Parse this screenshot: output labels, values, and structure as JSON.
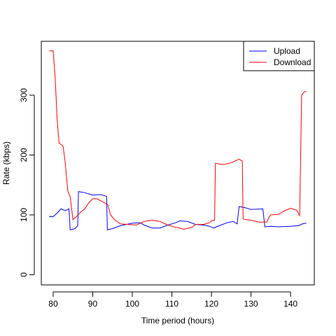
{
  "chart_data": {
    "type": "line",
    "title": "",
    "xlabel": "Time period (hours)",
    "ylabel": "Rate (kbps)",
    "xlim": [
      77,
      146
    ],
    "ylim": [
      -17,
      390
    ],
    "x_ticks": [
      80,
      90,
      100,
      110,
      120,
      130,
      140
    ],
    "y_ticks": [
      0,
      100,
      200,
      300
    ],
    "grid": false,
    "legend": {
      "position": "top-right",
      "entries": [
        {
          "label": "Upload",
          "color": "#0000ff"
        },
        {
          "label": "Download",
          "color": "#ff0000"
        }
      ]
    },
    "series": [
      {
        "name": "Upload",
        "color": "#0000ff",
        "points": [
          [
            79.0,
            97
          ],
          [
            80.0,
            97
          ],
          [
            81.0,
            103
          ],
          [
            82.0,
            110
          ],
          [
            83.0,
            107
          ],
          [
            84.0,
            110
          ],
          [
            84.3,
            75
          ],
          [
            85.5,
            77
          ],
          [
            86.2,
            82
          ],
          [
            86.4,
            139
          ],
          [
            88.0,
            137
          ],
          [
            90.0,
            133
          ],
          [
            92.0,
            134
          ],
          [
            93.5,
            131
          ],
          [
            93.7,
            75
          ],
          [
            95.0,
            77
          ],
          [
            97.0,
            82
          ],
          [
            100.0,
            86
          ],
          [
            102.0,
            87
          ],
          [
            103.0,
            83
          ],
          [
            105.0,
            78
          ],
          [
            107.0,
            78
          ],
          [
            109.0,
            83
          ],
          [
            111.0,
            87
          ],
          [
            112.0,
            90
          ],
          [
            114.0,
            89
          ],
          [
            116.0,
            84
          ],
          [
            118.0,
            83
          ],
          [
            119.5,
            81
          ],
          [
            120.5,
            78
          ],
          [
            122.0,
            82
          ],
          [
            124.0,
            87
          ],
          [
            125.5,
            89
          ],
          [
            126.5,
            85
          ],
          [
            127.0,
            114
          ],
          [
            128.5,
            112
          ],
          [
            130.0,
            109
          ],
          [
            133.0,
            110
          ],
          [
            133.5,
            80
          ],
          [
            135.0,
            81
          ],
          [
            137.0,
            80
          ],
          [
            140.0,
            81
          ],
          [
            142.0,
            82
          ],
          [
            143.0,
            85
          ],
          [
            144.0,
            86
          ]
        ]
      },
      {
        "name": "Download",
        "color": "#ff0000",
        "points": [
          [
            79.0,
            374
          ],
          [
            80.0,
            374
          ],
          [
            80.5,
            330
          ],
          [
            81.0,
            260
          ],
          [
            81.5,
            220
          ],
          [
            82.5,
            215
          ],
          [
            83.0,
            190
          ],
          [
            83.7,
            140
          ],
          [
            84.3,
            130
          ],
          [
            85.0,
            92
          ],
          [
            86.0,
            98
          ],
          [
            87.0,
            105
          ],
          [
            88.0,
            110
          ],
          [
            89.0,
            120
          ],
          [
            90.0,
            127
          ],
          [
            91.0,
            127
          ],
          [
            92.5,
            122
          ],
          [
            93.8,
            117
          ],
          [
            94.5,
            100
          ],
          [
            95.5,
            92
          ],
          [
            97.0,
            85
          ],
          [
            99.0,
            84
          ],
          [
            101.0,
            83
          ],
          [
            103.0,
            89
          ],
          [
            105.0,
            91
          ],
          [
            107.0,
            89
          ],
          [
            109.0,
            83
          ],
          [
            110.5,
            80
          ],
          [
            112.0,
            78
          ],
          [
            113.0,
            76
          ],
          [
            115.0,
            79
          ],
          [
            116.0,
            84
          ],
          [
            118.0,
            84
          ],
          [
            119.5,
            87
          ],
          [
            120.0,
            90
          ],
          [
            120.8,
            91
          ],
          [
            121.0,
            186
          ],
          [
            123.0,
            184
          ],
          [
            125.0,
            187
          ],
          [
            127.0,
            193
          ],
          [
            127.8,
            190
          ],
          [
            128.0,
            93
          ],
          [
            130.0,
            91
          ],
          [
            132.0,
            88
          ],
          [
            134.0,
            88
          ],
          [
            134.5,
            95
          ],
          [
            135.0,
            100
          ],
          [
            137.0,
            101
          ],
          [
            138.5,
            107
          ],
          [
            140.0,
            111
          ],
          [
            141.5,
            108
          ],
          [
            142.3,
            99
          ],
          [
            142.8,
            300
          ],
          [
            143.5,
            306
          ],
          [
            144.0,
            306
          ]
        ]
      }
    ]
  }
}
